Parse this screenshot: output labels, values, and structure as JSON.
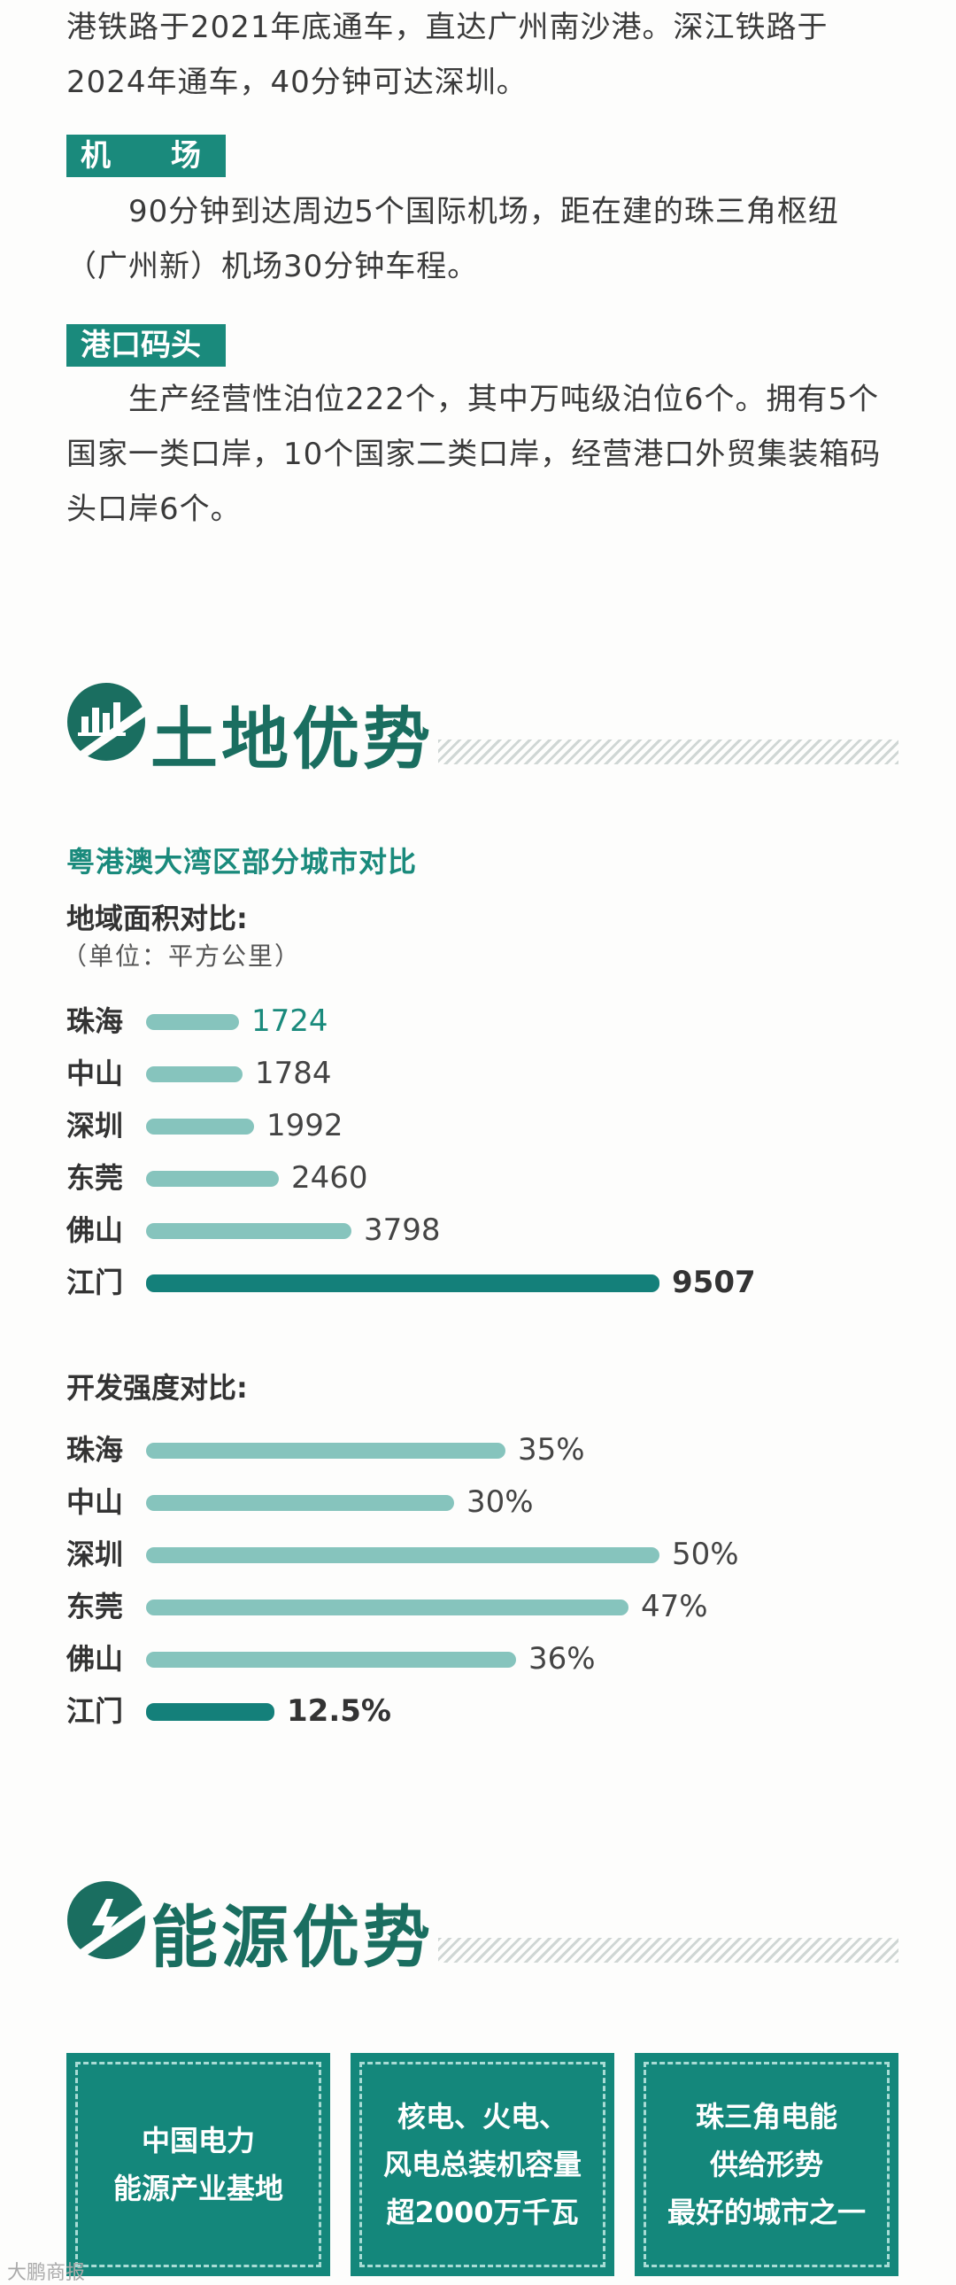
{
  "intro": {
    "lines": [
      "港铁路于2021年底通车，直达广州南沙港。深江铁路于",
      "2024年通车，40分钟可达深圳。"
    ]
  },
  "airport": {
    "tag": "机　　场",
    "lines": [
      "90分钟到达周边5个国际机场，距在建的珠三角枢纽",
      "（广州新）机场30分钟车程。"
    ]
  },
  "port": {
    "tag": "港口码头",
    "lines": [
      "生产经营性泊位222个，其中万吨级泊位6个。拥有5个",
      "国家一类口岸，10个国家二类口岸，经营港口外贸集装箱码",
      "头口岸6个。"
    ]
  },
  "land": {
    "title": "土地优势",
    "icon": "bar-chart-icon",
    "subtitle": "粤港澳大湾区部分城市对比",
    "area_label": "地域面积对比:",
    "area_unit": "（单位：平方公里）",
    "intensity_label": "开发强度对比:"
  },
  "chart_data": [
    {
      "type": "bar",
      "orientation": "horizontal",
      "title": "地域面积对比:",
      "unit": "（单位：平方公里）",
      "categories": [
        "珠海",
        "中山",
        "深圳",
        "东莞",
        "佛山",
        "江门"
      ],
      "values": [
        1724,
        1784,
        1992,
        2460,
        3798,
        9507
      ],
      "labels": [
        "1724",
        "1784",
        "1992",
        "2460",
        "3798",
        "9507"
      ],
      "colors": {
        "normal": "#86c4bd",
        "highlight": "#14807a",
        "accent_text": "#1a8a7c"
      }
    },
    {
      "type": "bar",
      "orientation": "horizontal",
      "title": "开发强度对比:",
      "categories": [
        "珠海",
        "中山",
        "深圳",
        "东莞",
        "佛山",
        "江门"
      ],
      "values": [
        35,
        30,
        50,
        47,
        36,
        12.5
      ],
      "labels": [
        "35%",
        "30%",
        "50%",
        "47%",
        "36%",
        "12.5%"
      ],
      "colors": {
        "normal": "#86c4bd",
        "highlight": "#14807a"
      }
    }
  ],
  "energy": {
    "title": "能源优势",
    "icon": "lightning-icon",
    "boxes": [
      {
        "lines": [
          "中国电力",
          "能源产业基地"
        ]
      },
      {
        "lines": [
          "核电、火电、",
          "风电总装机容量",
          "超2000万千瓦"
        ]
      },
      {
        "lines": [
          "珠三角电能",
          "供给形势",
          "最好的城市之一"
        ]
      }
    ]
  },
  "watermark": "大鹏商报"
}
